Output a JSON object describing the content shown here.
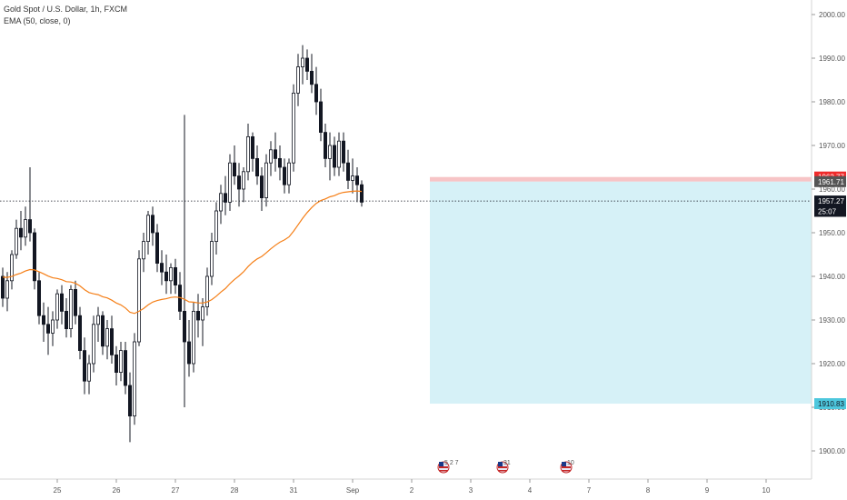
{
  "chart_data": {
    "type": "candlestick",
    "title": "Gold Spot / U.S. Dollar, 1h, FXCM",
    "indicator_label": "EMA (50, close, 0)",
    "ylim": [
      1895,
      2005
    ],
    "y_ticks": [
      "1900.00",
      "1910.00",
      "1920.00",
      "1930.00",
      "1940.00",
      "1950.00",
      "1960.00",
      "1970.00",
      "1980.00",
      "1990.00",
      "2000.00"
    ],
    "y_tick_values": [
      1900,
      1910,
      1920,
      1930,
      1940,
      1950,
      1960,
      1970,
      1980,
      1990,
      2000
    ],
    "x_ticks": [
      {
        "label": "25",
        "bar": 12
      },
      {
        "label": "26",
        "bar": 25
      },
      {
        "label": "27",
        "bar": 38
      },
      {
        "label": "28",
        "bar": 51
      },
      {
        "label": "31",
        "bar": 64
      },
      {
        "label": "Sep",
        "bar": 77
      },
      {
        "label": "2",
        "bar": 90
      },
      {
        "label": "3",
        "bar": 103
      },
      {
        "label": "4",
        "bar": 116
      },
      {
        "label": "7",
        "bar": 129
      },
      {
        "label": "8",
        "bar": 142
      },
      {
        "label": "9",
        "bar": 155
      },
      {
        "label": "10",
        "bar": 168
      }
    ],
    "x_total_bars": 180,
    "grid": false,
    "candle_color": "#131722",
    "ema_color": "#f57f17",
    "short_position": {
      "entry": 1961.71,
      "stop": 1962.77,
      "target": 1910.83,
      "start_bar": 94,
      "stop_color": "#f7c4c6",
      "target_color": "#d6f1f7"
    },
    "price_labels": [
      {
        "text": "1962.77",
        "value": 1962.77,
        "bg": "#ef2b2b",
        "fg": "#ffffff"
      },
      {
        "text": "1961.71",
        "value": 1961.71,
        "bg": "#555555",
        "fg": "#ffffff"
      },
      {
        "text": "1957.27",
        "value": 1957.27,
        "bg": "#131722",
        "fg": "#ffffff"
      },
      {
        "text": "25:07",
        "value": 1954.9,
        "bg": "#131722",
        "fg": "#ffffff"
      },
      {
        "text": "1910.83",
        "value": 1910.83,
        "bg": "#4dc7dd",
        "fg": "#131722"
      }
    ],
    "current_price": 1957.27,
    "events": [
      {
        "text": "5 2 7",
        "bar": 97,
        "icon": "us-flag-icon"
      },
      {
        "text": "31",
        "bar": 110,
        "icon": "us-flag-icon"
      },
      {
        "text": "10",
        "bar": 124,
        "icon": "us-flag-icon"
      }
    ],
    "ohlc": [
      [
        1940,
        1942,
        1933,
        1935
      ],
      [
        1935,
        1941,
        1932,
        1939
      ],
      [
        1939,
        1946,
        1937,
        1945
      ],
      [
        1945,
        1953,
        1944,
        1951
      ],
      [
        1951,
        1955,
        1946,
        1949
      ],
      [
        1949,
        1956,
        1947,
        1953
      ],
      [
        1953,
        1965,
        1948,
        1950
      ],
      [
        1950,
        1951,
        1937,
        1939
      ],
      [
        1939,
        1941,
        1929,
        1931
      ],
      [
        1931,
        1934,
        1925,
        1929
      ],
      [
        1929,
        1933,
        1922,
        1927
      ],
      [
        1927,
        1932,
        1924,
        1930
      ],
      [
        1930,
        1937,
        1928,
        1936
      ],
      [
        1936,
        1938,
        1929,
        1932
      ],
      [
        1932,
        1935,
        1926,
        1928
      ],
      [
        1928,
        1938,
        1926,
        1937
      ],
      [
        1937,
        1939,
        1929,
        1931
      ],
      [
        1931,
        1933,
        1921,
        1923
      ],
      [
        1923,
        1926,
        1913,
        1916
      ],
      [
        1916,
        1922,
        1913,
        1920
      ],
      [
        1920,
        1931,
        1918,
        1929
      ],
      [
        1929,
        1933,
        1925,
        1931
      ],
      [
        1931,
        1932,
        1922,
        1924
      ],
      [
        1924,
        1930,
        1921,
        1928
      ],
      [
        1928,
        1931,
        1920,
        1922
      ],
      [
        1922,
        1924,
        1915,
        1918
      ],
      [
        1918,
        1925,
        1916,
        1923
      ],
      [
        1923,
        1925,
        1913,
        1915
      ],
      [
        1915,
        1918,
        1902,
        1908
      ],
      [
        1908,
        1927,
        1906,
        1925
      ],
      [
        1925,
        1946,
        1924,
        1944
      ],
      [
        1944,
        1950,
        1941,
        1948
      ],
      [
        1948,
        1955,
        1945,
        1954
      ],
      [
        1954,
        1956,
        1947,
        1950
      ],
      [
        1950,
        1952,
        1941,
        1943
      ],
      [
        1943,
        1946,
        1938,
        1941
      ],
      [
        1941,
        1945,
        1936,
        1939
      ],
      [
        1939,
        1943,
        1936,
        1942
      ],
      [
        1942,
        1944,
        1936,
        1938
      ],
      [
        1938,
        1941,
        1930,
        1932
      ],
      [
        1932,
        1977,
        1910,
        1925
      ],
      [
        1925,
        1930,
        1917,
        1920
      ],
      [
        1920,
        1934,
        1918,
        1932
      ],
      [
        1932,
        1936,
        1926,
        1930
      ],
      [
        1930,
        1935,
        1924,
        1933
      ],
      [
        1933,
        1942,
        1931,
        1940
      ],
      [
        1940,
        1950,
        1938,
        1948
      ],
      [
        1948,
        1957,
        1945,
        1955
      ],
      [
        1955,
        1961,
        1952,
        1959
      ],
      [
        1959,
        1963,
        1954,
        1957
      ],
      [
        1957,
        1968,
        1955,
        1966
      ],
      [
        1966,
        1970,
        1961,
        1963
      ],
      [
        1963,
        1966,
        1956,
        1960
      ],
      [
        1960,
        1965,
        1957,
        1964
      ],
      [
        1964,
        1975,
        1962,
        1972
      ],
      [
        1972,
        1973,
        1964,
        1967
      ],
      [
        1967,
        1970,
        1961,
        1963
      ],
      [
        1963,
        1965,
        1955,
        1958
      ],
      [
        1958,
        1968,
        1956,
        1966
      ],
      [
        1966,
        1971,
        1963,
        1969
      ],
      [
        1969,
        1973,
        1964,
        1967
      ],
      [
        1967,
        1970,
        1962,
        1965
      ],
      [
        1965,
        1967,
        1959,
        1961
      ],
      [
        1961,
        1967,
        1959,
        1966
      ],
      [
        1966,
        1984,
        1964,
        1982
      ],
      [
        1982,
        1991,
        1979,
        1988
      ],
      [
        1988,
        1993,
        1984,
        1990
      ],
      [
        1990,
        1992,
        1985,
        1987
      ],
      [
        1987,
        1991,
        1982,
        1984
      ],
      [
        1984,
        1988,
        1977,
        1980
      ],
      [
        1980,
        1983,
        1971,
        1973
      ],
      [
        1973,
        1975,
        1965,
        1967
      ],
      [
        1967,
        1973,
        1962,
        1970
      ],
      [
        1970,
        1972,
        1963,
        1965
      ],
      [
        1965,
        1973,
        1963,
        1971
      ],
      [
        1971,
        1973,
        1964,
        1966
      ],
      [
        1966,
        1969,
        1960,
        1962
      ],
      [
        1962,
        1967,
        1959,
        1963
      ],
      [
        1963,
        1965,
        1957,
        1961
      ],
      [
        1961,
        1962,
        1956,
        1957
      ]
    ]
  }
}
